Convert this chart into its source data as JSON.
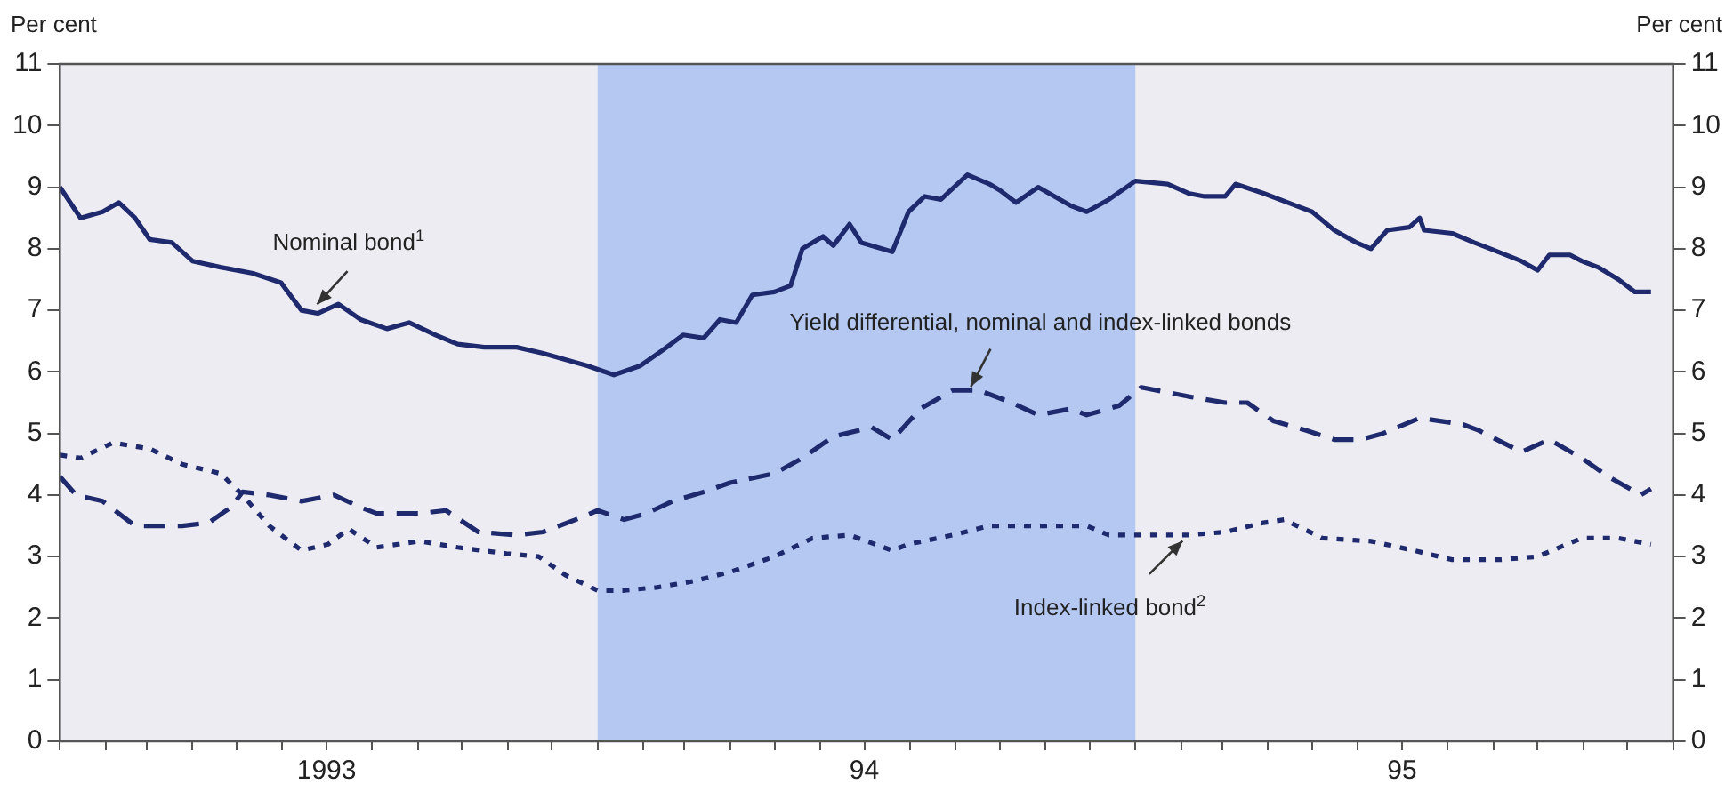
{
  "chart_data": {
    "type": "line",
    "ylabel": "Per cent",
    "y2label": "Per cent",
    "xlim": [
      "1993-01",
      "1996-01"
    ],
    "ylim": [
      0,
      11
    ],
    "y2lim": [
      0,
      11
    ],
    "yticks": [
      0,
      1,
      2,
      3,
      4,
      5,
      6,
      7,
      8,
      9,
      10,
      11
    ],
    "y2ticks": [
      0,
      1,
      2,
      3,
      4,
      5,
      6,
      7,
      8,
      9,
      10,
      11
    ],
    "xticks": [
      {
        "value": "1993-01",
        "label": null
      },
      {
        "value": "1993-02",
        "label": null
      },
      {
        "value": "1993-03",
        "label": null
      },
      {
        "value": "1993-04",
        "label": null
      },
      {
        "value": "1993-05",
        "label": null
      },
      {
        "value": "1993-06",
        "label": null
      },
      {
        "value": "1993-07",
        "label": "1993"
      },
      {
        "value": "1993-08",
        "label": null
      },
      {
        "value": "1993-09",
        "label": null
      },
      {
        "value": "1993-10",
        "label": null
      },
      {
        "value": "1993-11",
        "label": null
      },
      {
        "value": "1993-12",
        "label": null
      },
      {
        "value": "1994-01",
        "label": null
      },
      {
        "value": "1994-02",
        "label": null
      },
      {
        "value": "1994-03",
        "label": null
      },
      {
        "value": "1994-04",
        "label": null
      },
      {
        "value": "1994-05",
        "label": null
      },
      {
        "value": "1994-06",
        "label": null
      },
      {
        "value": "1994-07",
        "label": "94"
      },
      {
        "value": "1994-08",
        "label": null
      },
      {
        "value": "1994-09",
        "label": null
      },
      {
        "value": "1994-10",
        "label": null
      },
      {
        "value": "1994-11",
        "label": null
      },
      {
        "value": "1994-12",
        "label": null
      },
      {
        "value": "1995-01",
        "label": null
      },
      {
        "value": "1995-02",
        "label": null
      },
      {
        "value": "1995-03",
        "label": null
      },
      {
        "value": "1995-04",
        "label": null
      },
      {
        "value": "1995-05",
        "label": null
      },
      {
        "value": "1995-06",
        "label": null
      },
      {
        "value": "1995-07",
        "label": "95"
      },
      {
        "value": "1995-08",
        "label": null
      },
      {
        "value": "1995-09",
        "label": null
      },
      {
        "value": "1995-10",
        "label": null
      },
      {
        "value": "1995-11",
        "label": null
      },
      {
        "value": "1995-12",
        "label": null
      },
      {
        "value": "1996-01",
        "label": null
      }
    ],
    "grid": false,
    "legend": false,
    "marker": "none",
    "bands": [
      {
        "axis": "x",
        "from": "1994-01",
        "to": "1995-01",
        "color": "#b4c8f2"
      }
    ],
    "annotations": [
      {
        "text": "Nominal bond$^{1}$",
        "x": "1993-06-21",
        "y": 7.0
      },
      {
        "text": "Yield differential, nominal and index-linked bonds",
        "x": "1994-09-09",
        "y": 5.65
      },
      {
        "text": "Index-linked bond$^{2}$",
        "x": "1995-02-06",
        "y": 3.35
      }
    ],
    "series": [
      {
        "color": "#1f2a6e",
        "line_style": "solid",
        "x": [
          "1993-01-01",
          "1993-01-15",
          "1993-01-30",
          "1993-02-10",
          "1993-02-21",
          "1993-03-03",
          "1993-03-18",
          "1993-04-01",
          "1993-04-20",
          "1993-05-12",
          "1993-05-31",
          "1993-06-14",
          "1993-06-25",
          "1993-07-09",
          "1993-07-24",
          "1993-08-11",
          "1993-08-26",
          "1993-09-13",
          "1993-09-28",
          "1993-10-16",
          "1993-11-07",
          "1993-11-25",
          "1993-12-25",
          "1994-01-12",
          "1994-01-30",
          "1994-02-14",
          "1994-02-28",
          "1994-03-14",
          "1994-03-25",
          "1994-04-05",
          "1994-04-16",
          "1994-05-01",
          "1994-05-12",
          "1994-05-20",
          "1994-06-03",
          "1994-06-10",
          "1994-06-21",
          "1994-06-29",
          "1994-07-20",
          "1994-07-31",
          "1994-08-11",
          "1994-08-22",
          "1994-09-09",
          "1994-09-24",
          "1994-10-01",
          "1994-10-12",
          "1994-10-27",
          "1994-11-18",
          "1994-11-29",
          "1994-12-14",
          "1995-01-01",
          "1995-01-23",
          "1995-02-06",
          "1995-02-17",
          "1995-03-03",
          "1995-03-10",
          "1995-03-29",
          "1995-04-20",
          "1995-05-01",
          "1995-05-16",
          "1995-05-31",
          "1995-06-10",
          "1995-06-21",
          "1995-07-06",
          "1995-07-13",
          "1995-07-16",
          "1995-08-04",
          "1995-08-19",
          "1995-08-30",
          "1995-09-20",
          "1995-10-01",
          "1995-10-09",
          "1995-10-23",
          "1995-10-31",
          "1995-11-11",
          "1995-11-25",
          "1995-12-06",
          "1995-12-17"
        ],
        "values": [
          9.0,
          8.5,
          8.6,
          8.75,
          8.5,
          8.15,
          8.1,
          7.8,
          7.7,
          7.6,
          7.45,
          7.0,
          6.95,
          7.1,
          6.85,
          6.7,
          6.8,
          6.6,
          6.45,
          6.4,
          6.4,
          6.3,
          6.1,
          5.95,
          6.1,
          6.35,
          6.6,
          6.55,
          6.85,
          6.8,
          7.25,
          7.3,
          7.4,
          8.0,
          8.2,
          8.05,
          8.4,
          8.1,
          7.95,
          8.6,
          8.85,
          8.8,
          9.2,
          9.05,
          8.95,
          8.75,
          9.0,
          8.7,
          8.6,
          8.8,
          9.1,
          9.05,
          8.9,
          8.85,
          8.85,
          9.05,
          8.9,
          8.7,
          8.6,
          8.3,
          8.1,
          8.0,
          8.3,
          8.35,
          8.5,
          8.3,
          8.25,
          8.1,
          8.0,
          7.8,
          7.65,
          7.9,
          7.9,
          7.8,
          7.7,
          7.5,
          7.3,
          7.3
        ]
      },
      {
        "color": "#1f2a6e",
        "line_style": "dashed",
        "x": [
          "1993-01-01",
          "1993-01-12",
          "1993-01-30",
          "1993-02-21",
          "1993-03-10",
          "1993-03-25",
          "1993-04-12",
          "1993-04-27",
          "1993-05-05",
          "1993-05-23",
          "1993-06-14",
          "1993-07-06",
          "1993-07-24",
          "1993-08-04",
          "1993-09-02",
          "1993-09-20",
          "1993-10-12",
          "1993-11-07",
          "1993-11-25",
          "1993-12-17",
          "1994-01-01",
          "1994-01-19",
          "1994-02-03",
          "1994-02-21",
          "1994-03-14",
          "1994-04-01",
          "1994-05-01",
          "1994-05-20",
          "1994-06-10",
          "1994-07-06",
          "1994-07-20",
          "1994-08-08",
          "1994-08-30",
          "1994-09-17",
          "1994-10-09",
          "1994-10-27",
          "1994-11-18",
          "1994-11-29",
          "1994-12-21",
          "1995-01-05",
          "1995-02-06",
          "1995-03-03",
          "1995-03-18",
          "1995-04-05",
          "1995-04-27",
          "1995-05-16",
          "1995-06-03",
          "1995-06-18",
          "1995-07-13",
          "1995-08-11",
          "1995-08-22",
          "1995-09-20",
          "1995-10-09",
          "1995-10-31",
          "1995-11-18",
          "1995-12-10",
          "1995-12-17"
        ],
        "values": [
          4.3,
          4.0,
          3.9,
          3.5,
          3.5,
          3.5,
          3.55,
          3.8,
          4.05,
          4.0,
          3.9,
          4.0,
          3.8,
          3.7,
          3.7,
          3.75,
          3.4,
          3.35,
          3.4,
          3.6,
          3.75,
          3.6,
          3.7,
          3.9,
          4.05,
          4.2,
          4.35,
          4.6,
          4.95,
          5.1,
          4.9,
          5.4,
          5.7,
          5.7,
          5.5,
          5.3,
          5.4,
          5.3,
          5.45,
          5.75,
          5.6,
          5.5,
          5.5,
          5.2,
          5.05,
          4.9,
          4.9,
          5.0,
          5.25,
          5.15,
          5.05,
          4.7,
          4.9,
          4.6,
          4.3,
          4.0,
          4.1
        ]
      },
      {
        "color": "#1f2a6e",
        "line_style": "dotted",
        "x": [
          "1993-01-01",
          "1993-01-15",
          "1993-02-06",
          "1993-03-03",
          "1993-03-25",
          "1993-04-20",
          "1993-05-05",
          "1993-05-23",
          "1993-06-14",
          "1993-07-02",
          "1993-07-16",
          "1993-08-04",
          "1993-09-02",
          "1993-09-28",
          "1993-10-31",
          "1993-11-22",
          "1993-12-10",
          "1994-01-01",
          "1994-01-19",
          "1994-02-10",
          "1994-03-07",
          "1994-04-01",
          "1994-05-01",
          "1994-05-27",
          "1994-06-21",
          "1994-07-20",
          "1994-07-31",
          "1994-08-30",
          "1994-09-24",
          "1994-10-27",
          "1994-11-29",
          "1994-12-14",
          "1995-01-01",
          "1995-02-06",
          "1995-03-03",
          "1995-03-29",
          "1995-04-12",
          "1995-05-08",
          "1995-06-10",
          "1995-07-09",
          "1995-08-04",
          "1995-09-06",
          "1995-10-01",
          "1995-10-31",
          "1995-11-25",
          "1995-12-17"
        ],
        "values": [
          4.65,
          4.6,
          4.85,
          4.75,
          4.5,
          4.35,
          4.0,
          3.5,
          3.1,
          3.2,
          3.45,
          3.15,
          3.25,
          3.15,
          3.05,
          3.0,
          2.7,
          2.45,
          2.45,
          2.5,
          2.6,
          2.75,
          3.0,
          3.3,
          3.35,
          3.1,
          3.2,
          3.35,
          3.5,
          3.5,
          3.5,
          3.35,
          3.35,
          3.35,
          3.4,
          3.55,
          3.6,
          3.3,
          3.25,
          3.1,
          2.95,
          2.95,
          3.0,
          3.3,
          3.3,
          3.2
        ]
      }
    ]
  }
}
